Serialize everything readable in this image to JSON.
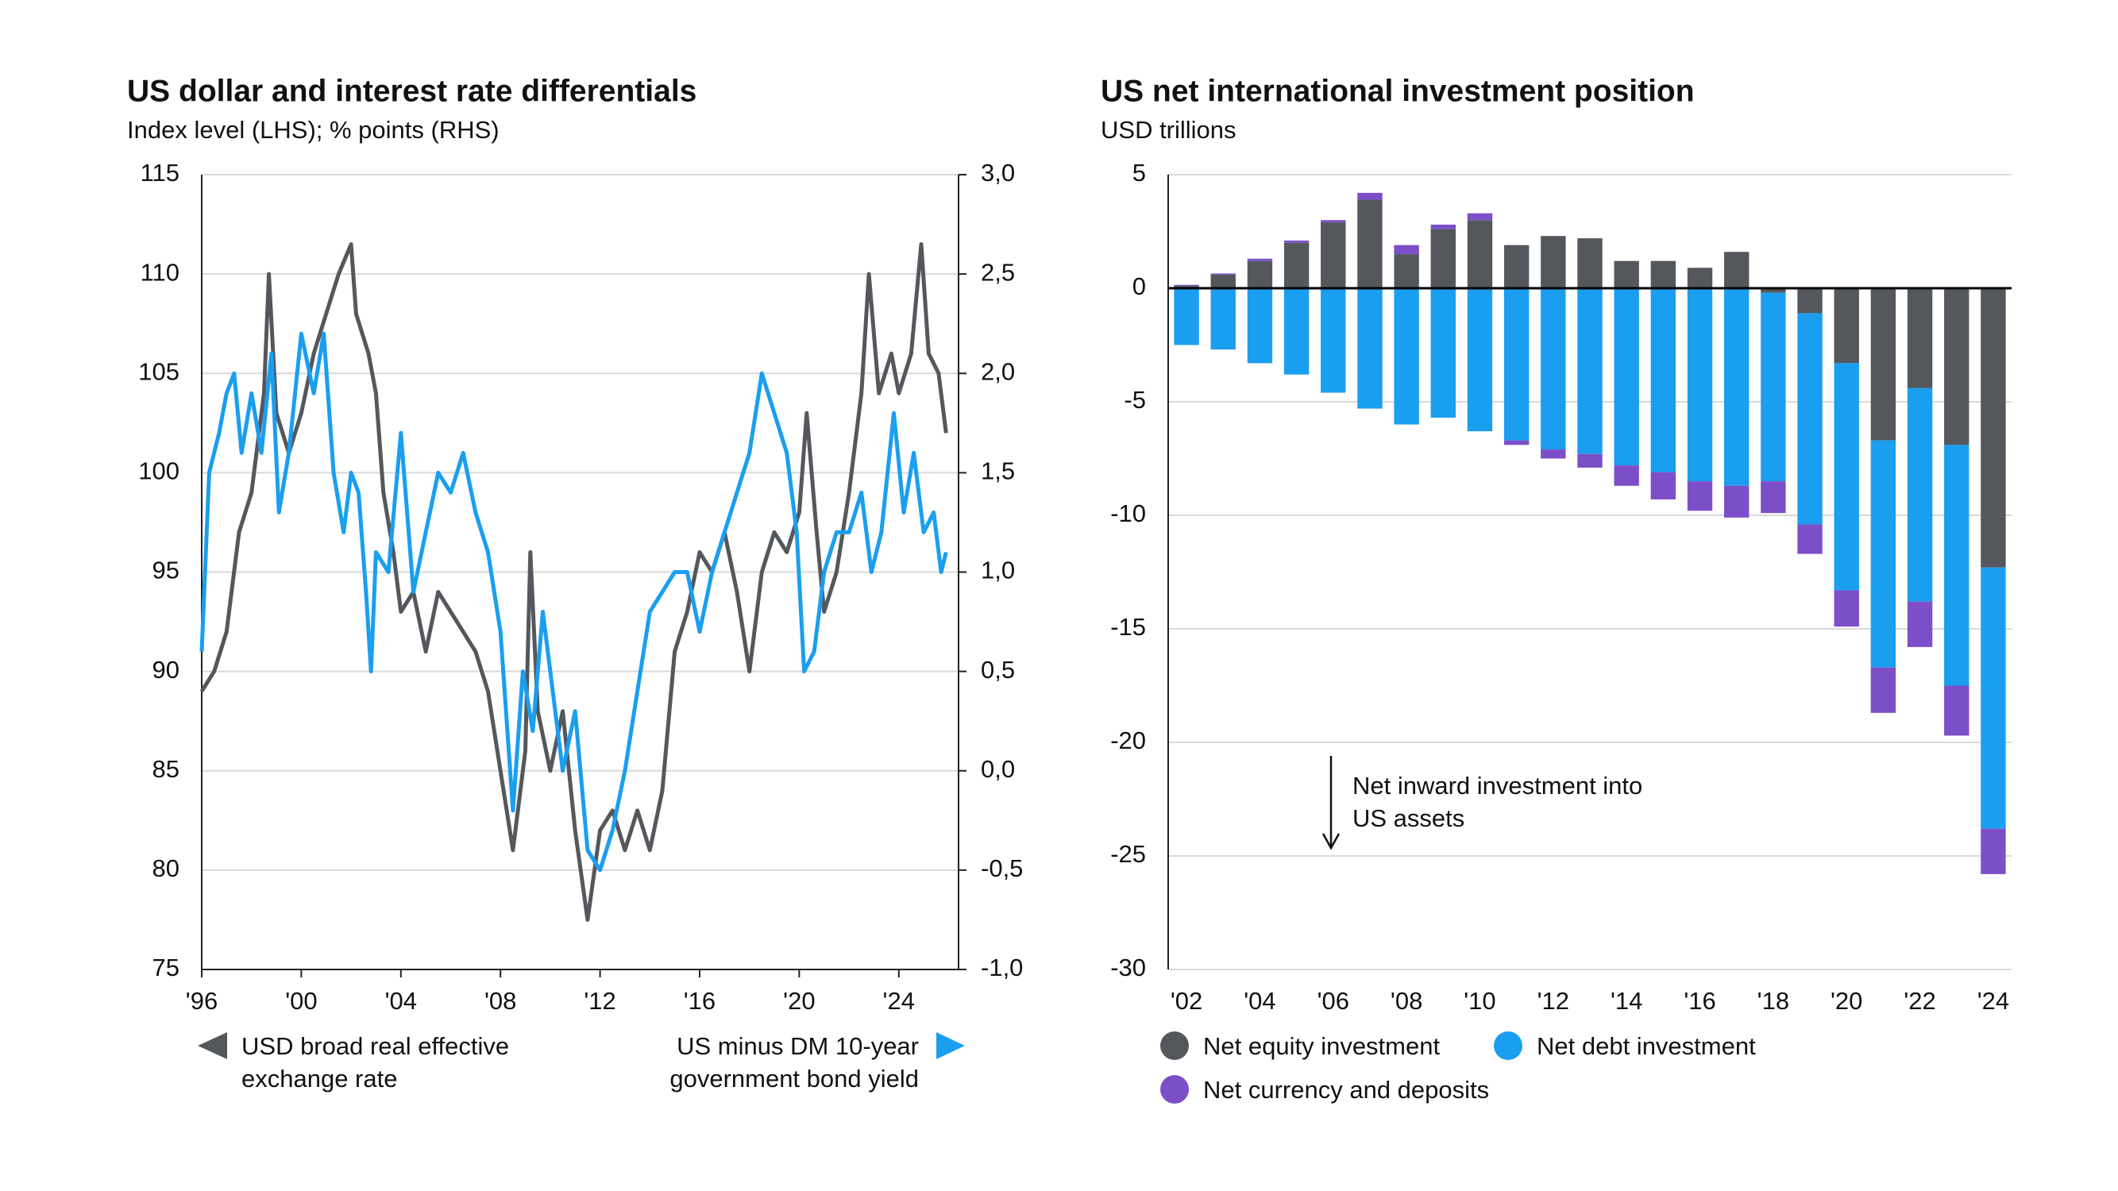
{
  "chart_data": [
    {
      "type": "line",
      "title": "US dollar and interest rate differentials",
      "subtitle": "Index level (LHS); % points (RHS)",
      "xlim": [
        1996,
        2026.4
      ],
      "xticks": [
        {
          "value": 1996,
          "label": "'96"
        },
        {
          "value": 2000,
          "label": "'00"
        },
        {
          "value": 2004,
          "label": "'04"
        },
        {
          "value": 2008,
          "label": "'08"
        },
        {
          "value": 2012,
          "label": "'12"
        },
        {
          "value": 2016,
          "label": "'16"
        },
        {
          "value": 2020,
          "label": "'20"
        },
        {
          "value": 2024,
          "label": "'24"
        }
      ],
      "ylim": [
        75,
        115
      ],
      "yticks": [
        75,
        80,
        85,
        90,
        95,
        100,
        105,
        110,
        115
      ],
      "y2lim": [
        -1,
        3
      ],
      "y2ticks": [
        {
          "value": -1,
          "label": "-1,0"
        },
        {
          "value": -0.5,
          "label": "-0,5"
        },
        {
          "value": 0,
          "label": "0,0"
        },
        {
          "value": 0.5,
          "label": "0,5"
        },
        {
          "value": 1,
          "label": "1,0"
        },
        {
          "value": 1.5,
          "label": "1,5"
        },
        {
          "value": 2,
          "label": "2,0"
        },
        {
          "value": 2.5,
          "label": "2,5"
        },
        {
          "value": 3,
          "label": "3,0"
        }
      ],
      "grid": true,
      "series": [
        {
          "name": "USD broad real effective exchange rate",
          "color": "#54585d",
          "axis": "y",
          "x": [
            1996.0,
            1996.5,
            1997.0,
            1997.5,
            1998.0,
            1998.5,
            1998.7,
            1999.0,
            1999.5,
            2000.0,
            2000.5,
            2001.0,
            2001.5,
            2002.0,
            2002.2,
            2002.7,
            2003.0,
            2003.3,
            2003.7,
            2004.0,
            2004.5,
            2005.0,
            2005.5,
            2006.0,
            2006.5,
            2007.0,
            2007.5,
            2008.0,
            2008.5,
            2009.0,
            2009.2,
            2009.5,
            2010.0,
            2010.5,
            2011.0,
            2011.5,
            2012.0,
            2012.5,
            2013.0,
            2013.5,
            2014.0,
            2014.5,
            2015.0,
            2015.5,
            2016.0,
            2016.5,
            2017.0,
            2017.5,
            2018.0,
            2018.5,
            2019.0,
            2019.5,
            2020.0,
            2020.3,
            2020.7,
            2021.0,
            2021.5,
            2022.0,
            2022.5,
            2022.8,
            2023.2,
            2023.7,
            2024.0,
            2024.5,
            2024.9,
            2025.2,
            2025.6,
            2025.9
          ],
          "values": [
            89,
            90,
            92,
            97,
            99,
            104,
            110,
            103,
            101,
            103,
            106,
            108,
            110,
            111.5,
            108,
            106,
            104,
            99,
            96,
            93,
            94,
            91,
            94,
            93,
            92,
            91,
            89,
            85,
            81,
            86,
            96,
            88,
            85,
            88,
            82,
            77.5,
            82,
            83,
            81,
            83,
            81,
            84,
            91,
            93,
            96,
            95,
            97,
            94,
            90,
            95,
            97,
            96,
            98,
            103,
            97,
            93,
            95,
            99,
            104,
            110,
            104,
            106,
            104,
            106,
            111.5,
            106,
            105,
            102
          ]
        },
        {
          "name": "US minus DM 10-year government bond yield",
          "color": "#1a9ef0",
          "axis": "y2",
          "x": [
            1996.0,
            1996.3,
            1996.7,
            1997.0,
            1997.3,
            1997.6,
            1998.0,
            1998.4,
            1998.8,
            1999.1,
            1999.5,
            2000.0,
            2000.5,
            2000.9,
            2001.3,
            2001.7,
            2002.0,
            2002.3,
            2002.6,
            2002.8,
            2003.0,
            2003.5,
            2004.0,
            2004.5,
            2005.0,
            2005.5,
            2006.0,
            2006.5,
            2007.0,
            2007.5,
            2008.0,
            2008.5,
            2008.9,
            2009.3,
            2009.7,
            2010.0,
            2010.5,
            2011.0,
            2011.5,
            2012.0,
            2012.5,
            2013.0,
            2013.5,
            2014.0,
            2014.5,
            2015.0,
            2015.5,
            2016.0,
            2016.5,
            2017.0,
            2017.5,
            2018.0,
            2018.5,
            2019.0,
            2019.5,
            2019.9,
            2020.2,
            2020.6,
            2021.0,
            2021.5,
            2022.0,
            2022.5,
            2022.9,
            2023.3,
            2023.8,
            2024.2,
            2024.6,
            2025.0,
            2025.4,
            2025.7,
            2025.9
          ],
          "values": [
            0.6,
            1.5,
            1.7,
            1.9,
            2.0,
            1.6,
            1.9,
            1.6,
            2.1,
            1.3,
            1.6,
            2.2,
            1.9,
            2.2,
            1.5,
            1.2,
            1.5,
            1.4,
            0.9,
            0.5,
            1.1,
            1.0,
            1.7,
            0.9,
            1.2,
            1.5,
            1.4,
            1.6,
            1.3,
            1.1,
            0.7,
            -0.2,
            0.5,
            0.2,
            0.8,
            0.5,
            0.0,
            0.3,
            -0.4,
            -0.5,
            -0.3,
            0.0,
            0.4,
            0.8,
            0.9,
            1.0,
            1.0,
            0.7,
            1.0,
            1.2,
            1.4,
            1.6,
            2.0,
            1.8,
            1.6,
            1.2,
            0.5,
            0.6,
            1.0,
            1.2,
            1.2,
            1.4,
            1.0,
            1.2,
            1.8,
            1.3,
            1.6,
            1.2,
            1.3,
            1.0,
            1.1
          ]
        }
      ]
    },
    {
      "type": "bar",
      "stacked": true,
      "title": "US net international investment position",
      "subtitle": "USD trillions",
      "categories": [
        "'02",
        null,
        "'04",
        null,
        "'06",
        null,
        "'08",
        null,
        "'10",
        null,
        "'12",
        null,
        "'14",
        null,
        "'16",
        null,
        "'18",
        null,
        "'20",
        null,
        "'22",
        null,
        "'24"
      ],
      "ylim": [
        -30,
        5
      ],
      "yticks": [
        -30,
        -25,
        -20,
        -15,
        -10,
        -5,
        0,
        5
      ],
      "grid": true,
      "annotation": "Net inward investment into US assets",
      "series": [
        {
          "name": "Net equity investment",
          "color": "#54585d",
          "values": [
            0.1,
            0.6,
            1.2,
            2.0,
            2.9,
            3.9,
            1.5,
            2.6,
            3.0,
            1.9,
            2.3,
            2.2,
            1.2,
            1.2,
            0.9,
            1.6,
            -0.2,
            -1.1,
            -3.3,
            -6.7,
            -4.4,
            -6.9,
            -12.3
          ]
        },
        {
          "name": "Net debt investment",
          "color": "#1a9ef0",
          "values": [
            -2.5,
            -2.7,
            -3.3,
            -3.8,
            -4.6,
            -5.3,
            -6.0,
            -5.7,
            -6.3,
            -6.7,
            -7.1,
            -7.3,
            -7.8,
            -8.1,
            -8.5,
            -8.7,
            -8.3,
            -9.3,
            -10.0,
            -10.0,
            -9.4,
            -10.6,
            -11.5
          ]
        },
        {
          "name": "Net currency and deposits",
          "color": "#7c4fc9",
          "values": [
            0.05,
            0.05,
            0.1,
            0.1,
            0.1,
            0.3,
            0.4,
            0.2,
            0.3,
            -0.2,
            -0.4,
            -0.6,
            -0.9,
            -1.2,
            -1.3,
            -1.4,
            -1.4,
            -1.3,
            -1.6,
            -2.0,
            -2.0,
            -2.2,
            -2.0
          ]
        }
      ]
    }
  ]
}
